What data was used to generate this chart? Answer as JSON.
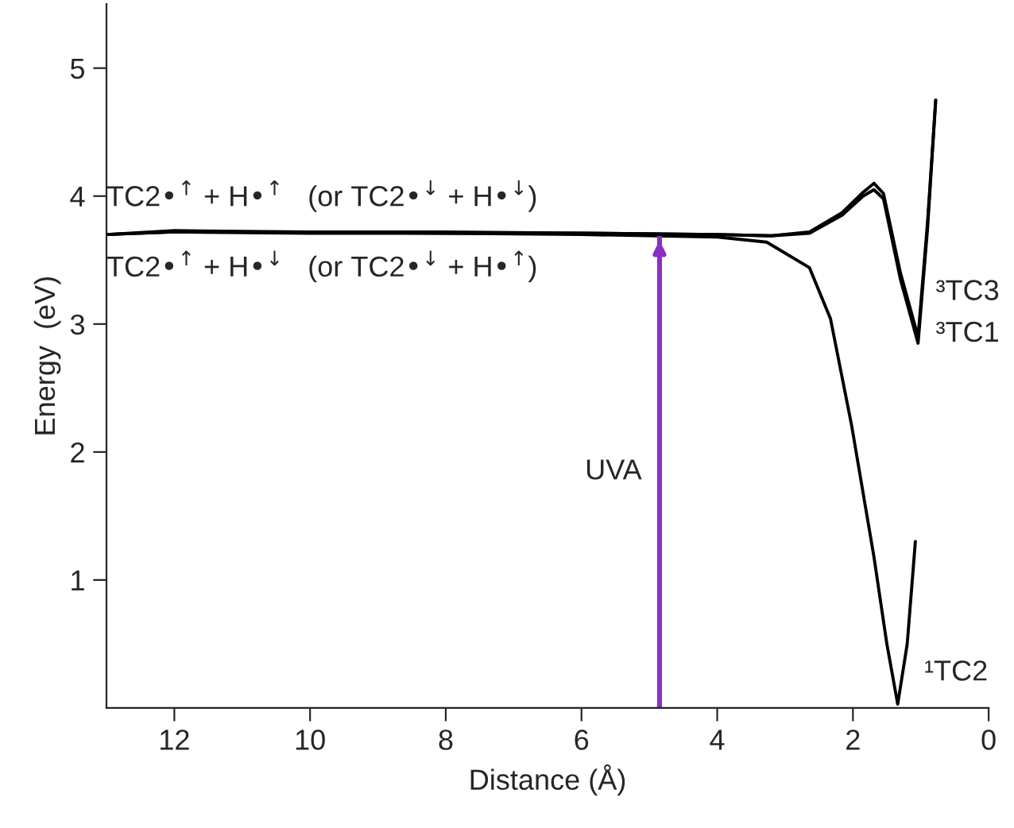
{
  "chart_data": {
    "type": "line",
    "xlabel": "Distance (Å)",
    "ylabel": "Energy  (eV)",
    "xlim": [
      13,
      0
    ],
    "xticks": [
      12,
      10,
      8,
      6,
      4,
      2,
      0
    ],
    "ylim": [
      0,
      5.5
    ],
    "yticks": [
      1,
      2,
      3,
      4,
      5
    ],
    "grid": false,
    "legend": false,
    "marker": "none",
    "line_style": "solid",
    "series": [
      {
        "name": "³TC3",
        "color": "#000000",
        "x": [
          13,
          12,
          10,
          8,
          6,
          4,
          3.2,
          2.64,
          2.16,
          1.85,
          1.69,
          1.55,
          1.3,
          1.04,
          0.9,
          0.78
        ],
        "values": [
          3.7,
          3.73,
          3.72,
          3.72,
          3.71,
          3.7,
          3.69,
          3.72,
          3.87,
          4.03,
          4.1,
          4.02,
          3.4,
          2.9,
          3.8,
          4.75
        ]
      },
      {
        "name": "³TC1",
        "color": "#000000",
        "x": [
          13,
          12,
          10,
          8,
          6,
          4,
          3.2,
          2.64,
          2.16,
          1.85,
          1.69,
          1.55,
          1.3,
          1.04,
          0.9,
          0.78
        ],
        "values": [
          3.7,
          3.72,
          3.72,
          3.71,
          3.71,
          3.7,
          3.69,
          3.71,
          3.85,
          4.0,
          4.05,
          3.98,
          3.35,
          2.85,
          3.75,
          4.75
        ]
      },
      {
        "name": "¹TC2",
        "color": "#000000",
        "x": [
          13,
          12,
          10,
          8,
          6,
          4,
          3.27,
          2.64,
          2.33,
          2.02,
          1.69,
          1.5,
          1.34,
          1.2,
          1.08
        ],
        "values": [
          3.7,
          3.72,
          3.71,
          3.71,
          3.7,
          3.68,
          3.64,
          3.44,
          3.04,
          2.21,
          1.18,
          0.5,
          0.03,
          0.5,
          1.3
        ]
      }
    ],
    "annotations": [
      "TC2•$^{↑}$ + H•$^{↑}$   (or TC2•$^{↓}$ + H•$^{↓}$)",
      "TC2•$^{↑}$ + H•$^{↓}$   (or TC2•$^{↓}$ + H•$^{↑}$)"
    ],
    "ref_lines": [
      {
        "axis": "x",
        "value": 4.85,
        "label": "UVA",
        "color": "#8b2fc4"
      }
    ]
  }
}
